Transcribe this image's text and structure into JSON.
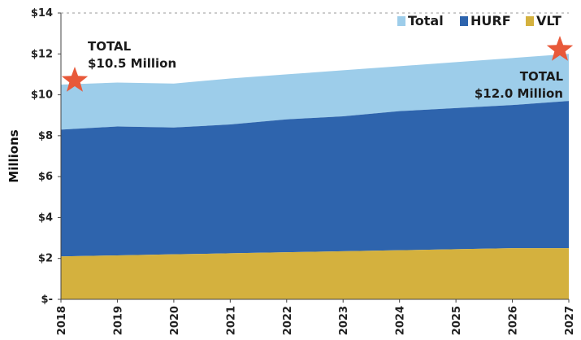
{
  "chart_data": {
    "type": "area",
    "stacked": true,
    "x": [
      "2018",
      "2019",
      "2020",
      "2021",
      "2022",
      "2023",
      "2024",
      "2025",
      "2026",
      "2027"
    ],
    "series": [
      {
        "name": "VLT",
        "color": "#d4b13e",
        "values": [
          2.1,
          2.15,
          2.2,
          2.25,
          2.3,
          2.35,
          2.4,
          2.45,
          2.5,
          2.5
        ]
      },
      {
        "name": "HURF",
        "color": "#2e64ad",
        "values": [
          6.2,
          6.3,
          6.2,
          6.3,
          6.5,
          6.6,
          6.8,
          6.9,
          7.0,
          7.2
        ]
      },
      {
        "name": "Total",
        "color": "#9dcdea",
        "values": [
          10.5,
          10.6,
          10.55,
          10.8,
          11.0,
          11.2,
          11.4,
          11.6,
          11.8,
          12.0
        ]
      }
    ],
    "legend": [
      {
        "name": "Total",
        "color": "#9dcdea"
      },
      {
        "name": "HURF",
        "color": "#2e64ad"
      },
      {
        "name": "VLT",
        "color": "#d4b13e"
      }
    ],
    "legend_position": "top-right",
    "ylabel": "Millions",
    "ylim": [
      0,
      14
    ],
    "yticks": [
      0,
      2,
      4,
      6,
      8,
      10,
      12,
      14
    ],
    "ytick_labels": [
      "$-",
      "$2",
      "$4",
      "$6",
      "$8",
      "$10",
      "$12",
      "$14"
    ],
    "annotations": [
      {
        "x": "2018",
        "lines": [
          "TOTAL",
          "$10.5 Million"
        ],
        "marker": "star",
        "marker_color": "#e8593a"
      },
      {
        "x": "2027",
        "lines": [
          "TOTAL",
          "$12.0 Million"
        ],
        "marker": "star",
        "marker_color": "#e8593a"
      }
    ],
    "grid": false
  }
}
